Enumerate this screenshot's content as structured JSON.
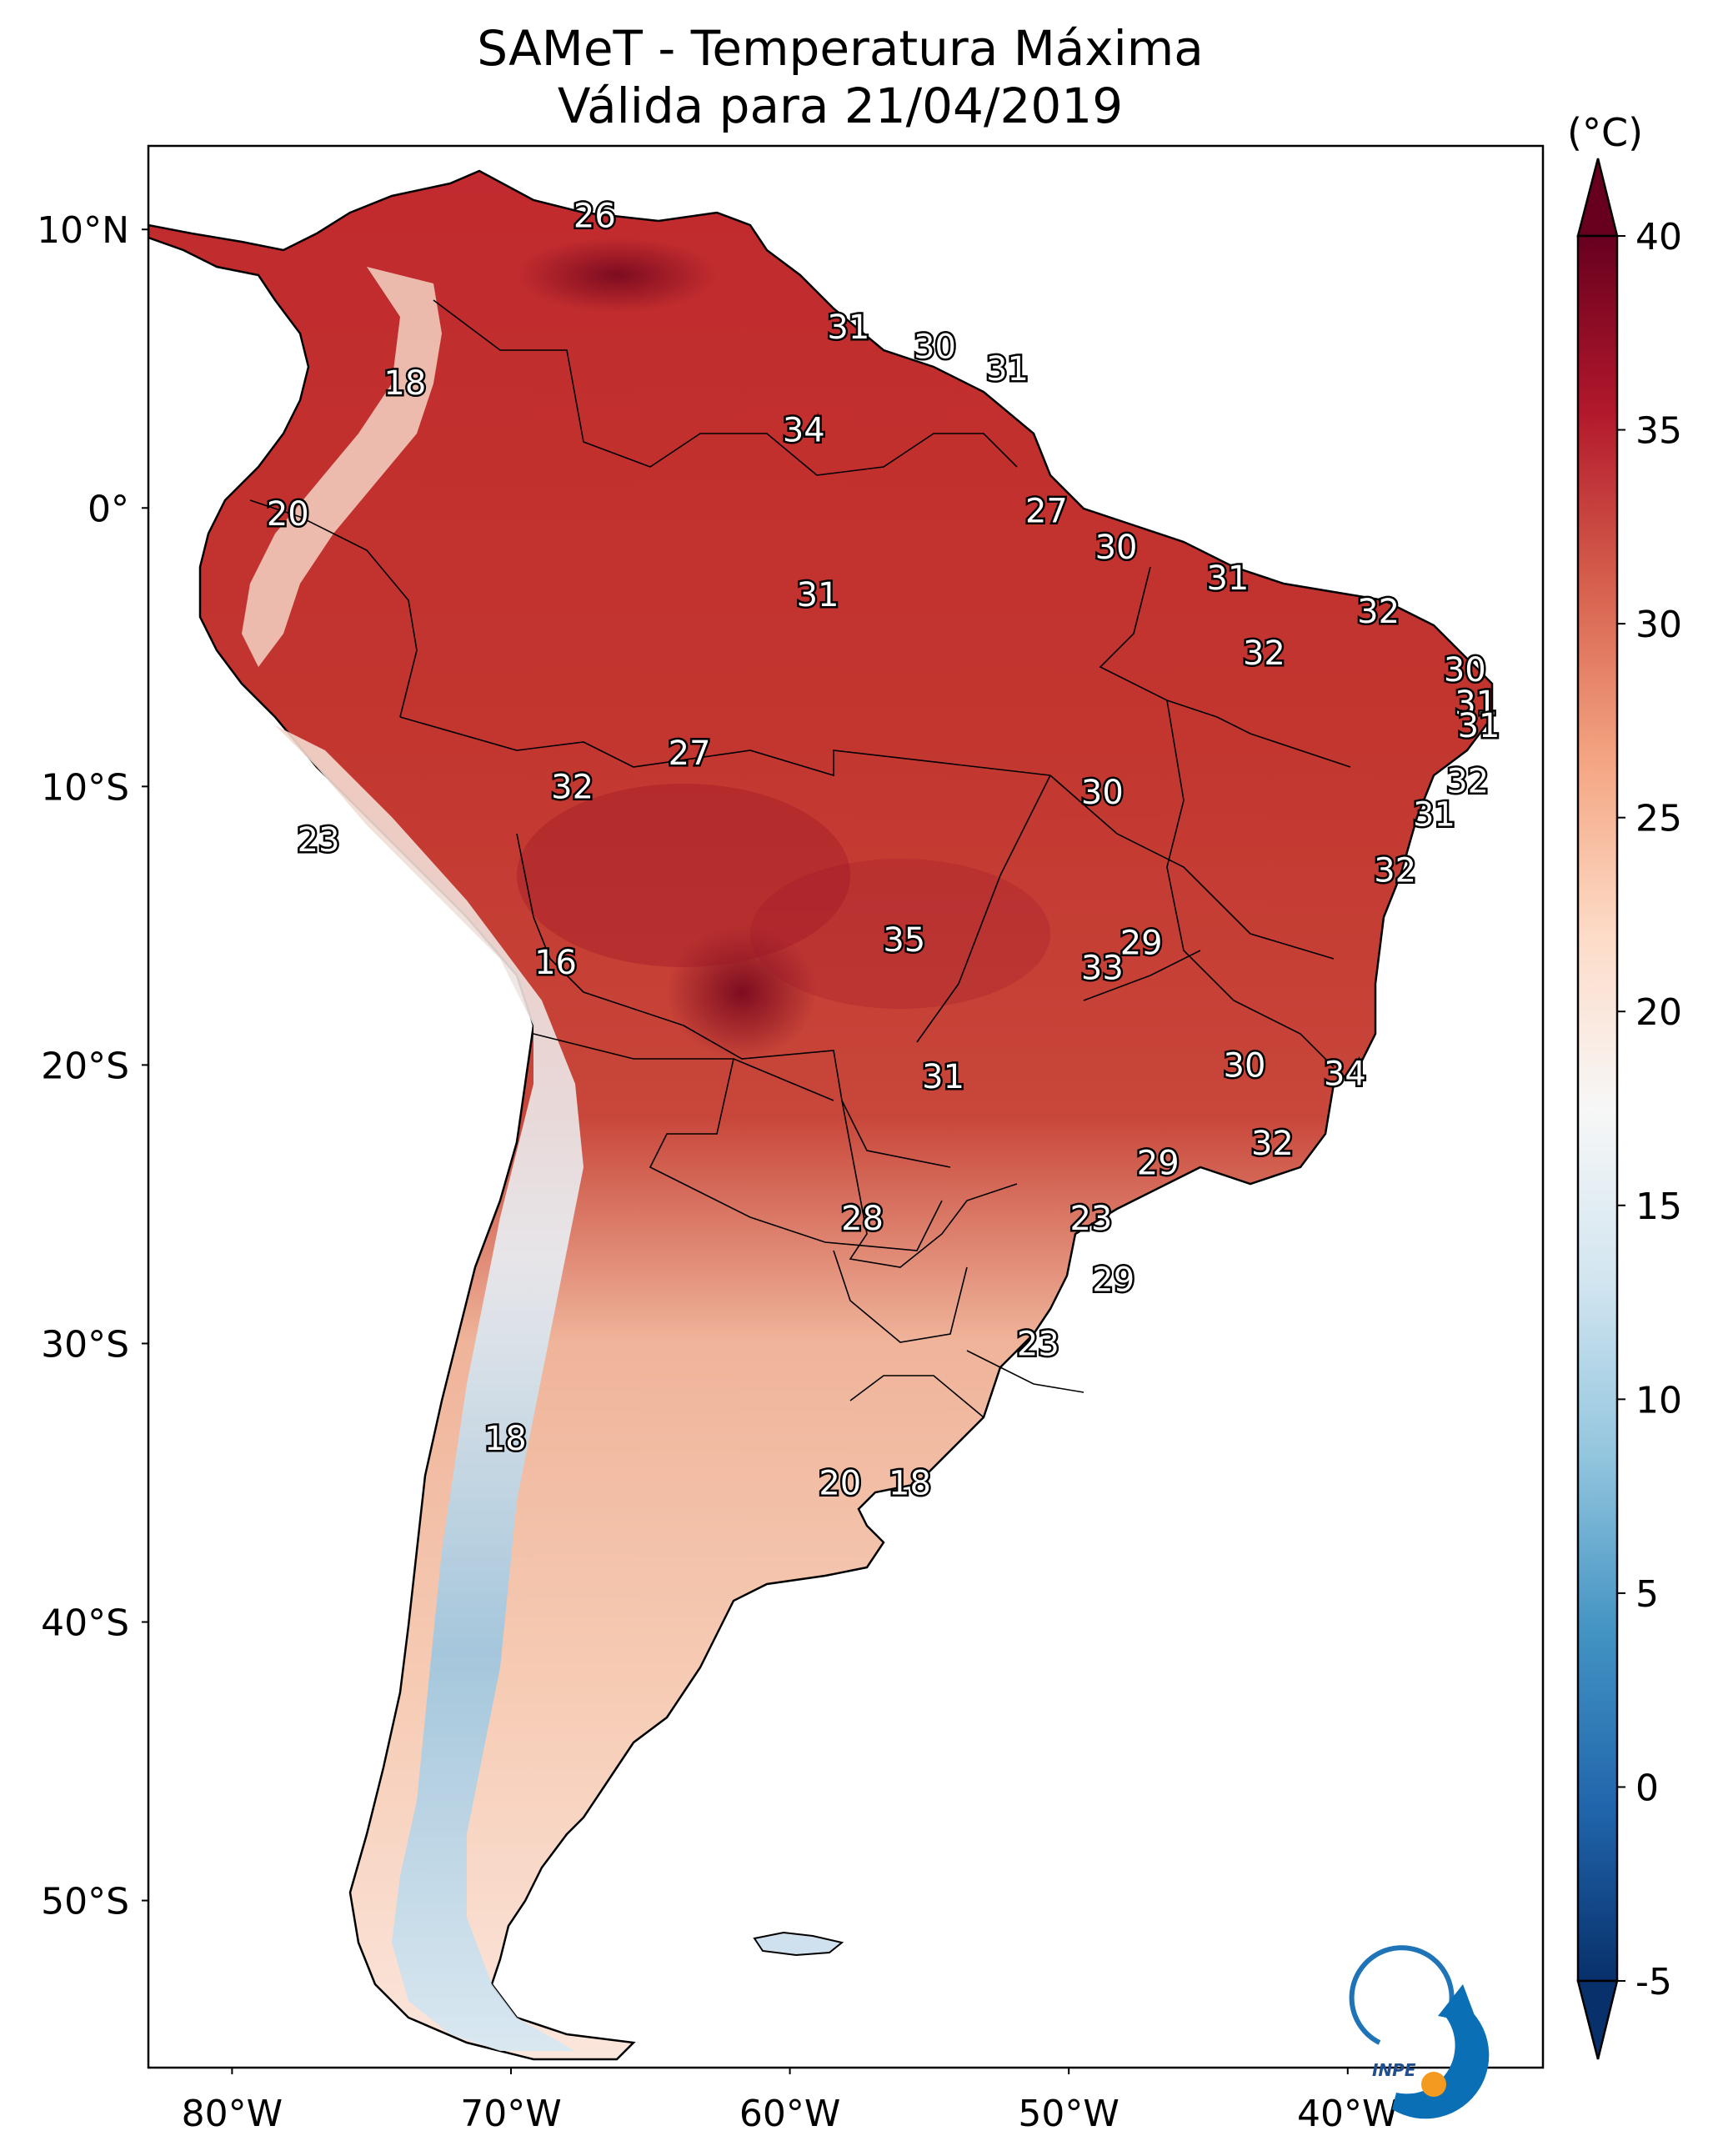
{
  "title": "SAMeT - Temperatura Máxima",
  "subtitle": "Válida para 21/04/2019",
  "colorbar": {
    "unit": "(°C)",
    "min": -5,
    "max": 40,
    "ticks": [
      "40",
      "35",
      "30",
      "25",
      "20",
      "15",
      "10",
      "5",
      "0",
      "-5"
    ],
    "colors": [
      "#08306b",
      "#2166ac",
      "#4393c3",
      "#92c5de",
      "#d1e5f0",
      "#f7f7f7",
      "#fddbc7",
      "#f4a582",
      "#d6604d",
      "#b2182b",
      "#67001f"
    ]
  },
  "axes": {
    "lon_labels": [
      "80°W",
      "70°W",
      "60°W",
      "50°W",
      "40°W"
    ],
    "lat_labels": [
      "10°N",
      "0°",
      "10°S",
      "20°S",
      "30°S",
      "40°S",
      "50°S"
    ]
  },
  "contour_labels": [
    {
      "text": "26",
      "lon": -67.0,
      "lat": 10.5
    },
    {
      "text": "31",
      "lon": -57.9,
      "lat": 6.5
    },
    {
      "text": "30",
      "lon": -54.8,
      "lat": 5.8
    },
    {
      "text": "31",
      "lon": -52.2,
      "lat": 5.0
    },
    {
      "text": "18",
      "lon": -73.8,
      "lat": 4.5
    },
    {
      "text": "34",
      "lon": -59.5,
      "lat": 2.8
    },
    {
      "text": "20",
      "lon": -78.0,
      "lat": -0.2
    },
    {
      "text": "27",
      "lon": -50.8,
      "lat": -0.1
    },
    {
      "text": "30",
      "lon": -48.3,
      "lat": -1.4
    },
    {
      "text": "31",
      "lon": -44.3,
      "lat": -2.5
    },
    {
      "text": "31",
      "lon": -59.0,
      "lat": -3.1
    },
    {
      "text": "32",
      "lon": -38.9,
      "lat": -3.7
    },
    {
      "text": "32",
      "lon": -43.0,
      "lat": -5.2
    },
    {
      "text": "30",
      "lon": -35.8,
      "lat": -5.8
    },
    {
      "text": "31",
      "lon": -35.4,
      "lat": -7.0
    },
    {
      "text": "31",
      "lon": -35.3,
      "lat": -7.8
    },
    {
      "text": "27",
      "lon": -63.6,
      "lat": -8.8
    },
    {
      "text": "32",
      "lon": -67.8,
      "lat": -10.0
    },
    {
      "text": "30",
      "lon": -48.8,
      "lat": -10.2
    },
    {
      "text": "32",
      "lon": -35.7,
      "lat": -9.8
    },
    {
      "text": "31",
      "lon": -36.9,
      "lat": -11.0
    },
    {
      "text": "23",
      "lon": -76.9,
      "lat": -11.9
    },
    {
      "text": "32",
      "lon": -38.3,
      "lat": -13.0
    },
    {
      "text": "29",
      "lon": -47.4,
      "lat": -15.6
    },
    {
      "text": "35",
      "lon": -55.9,
      "lat": -15.5
    },
    {
      "text": "33",
      "lon": -48.8,
      "lat": -16.5
    },
    {
      "text": "16",
      "lon": -68.4,
      "lat": -16.3
    },
    {
      "text": "30",
      "lon": -43.7,
      "lat": -20.0
    },
    {
      "text": "34",
      "lon": -40.1,
      "lat": -20.3
    },
    {
      "text": "31",
      "lon": -54.5,
      "lat": -20.4
    },
    {
      "text": "32",
      "lon": -42.7,
      "lat": -22.8
    },
    {
      "text": "29",
      "lon": -46.8,
      "lat": -23.5
    },
    {
      "text": "28",
      "lon": -57.4,
      "lat": -25.5
    },
    {
      "text": "23",
      "lon": -49.2,
      "lat": -25.5
    },
    {
      "text": "29",
      "lon": -48.4,
      "lat": -27.7
    },
    {
      "text": "23",
      "lon": -51.1,
      "lat": -30.0
    },
    {
      "text": "18",
      "lon": -70.2,
      "lat": -33.4
    },
    {
      "text": "20",
      "lon": -58.2,
      "lat": -35.0
    },
    {
      "text": "18",
      "lon": -55.7,
      "lat": -35.0
    }
  ],
  "logo": {
    "text": "INPE"
  }
}
